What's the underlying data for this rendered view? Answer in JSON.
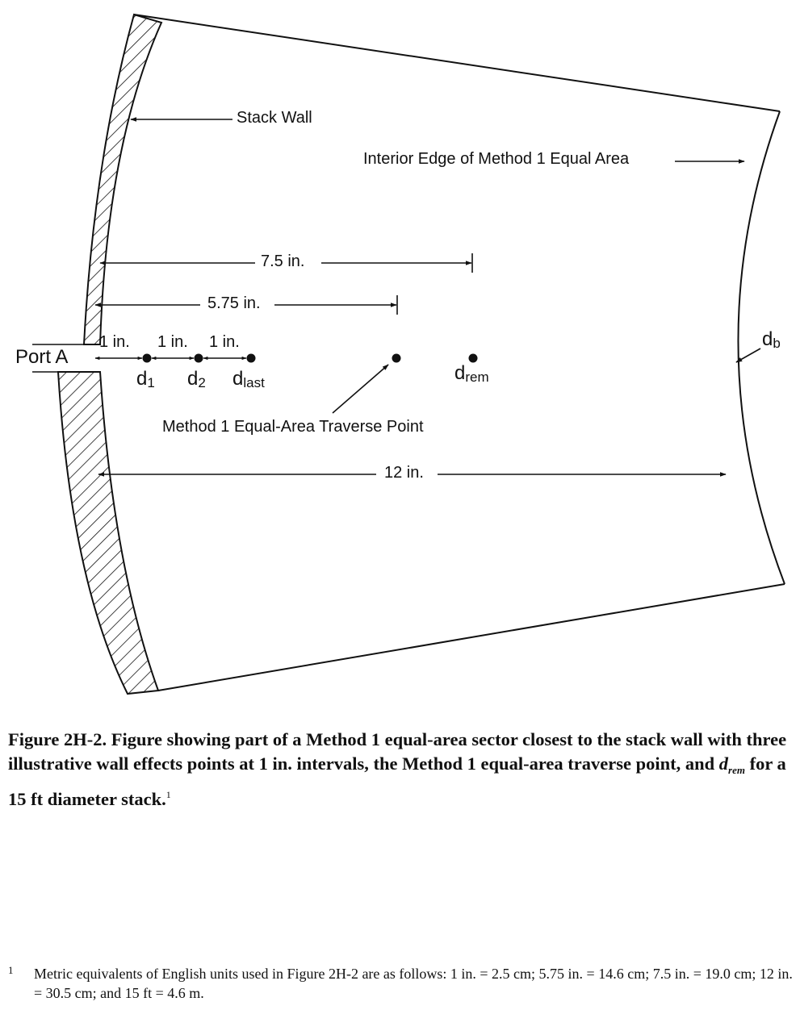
{
  "diagram": {
    "stack_wall_label": "Stack Wall",
    "interior_edge_label": "Interior Edge of Method 1 Equal Area",
    "dim_7_5": "7.5 in.",
    "dim_5_75": "5.75 in.",
    "dim_12": "12 in.",
    "interval_1": "1 in.",
    "interval_2": "1 in.",
    "interval_3": "1 in.",
    "port_label": "Port A",
    "d1": {
      "base": "d",
      "sub": "1"
    },
    "d2": {
      "base": "d",
      "sub": "2"
    },
    "dlast": {
      "base": "d",
      "sub": "last"
    },
    "drem": {
      "base": "d",
      "sub": "rem"
    },
    "db": {
      "base": "d",
      "sub": "b"
    },
    "traverse_point_label": "Method 1 Equal-Area Traverse Point"
  },
  "caption": {
    "part1": "Figure 2H-2.  Figure showing part of a Method 1 equal-area sector closest to the stack wall with three illustrative wall effects points at 1 in. intervals, the Method 1 equal-area traverse point, and ",
    "var_base": "d",
    "var_sub": "rem",
    "part2": " for a 15 ft diameter stack.",
    "footnote_ref": "1"
  },
  "footnote": {
    "marker": "1",
    "text": "Metric equivalents of English units used in Figure 2H-2 are as follows: 1 in. = 2.5 cm; 5.75 in. = 14.6 cm; 7.5 in. = 19.0 cm; 12 in. = 30.5 cm; and 15 ft = 4.6 m."
  }
}
